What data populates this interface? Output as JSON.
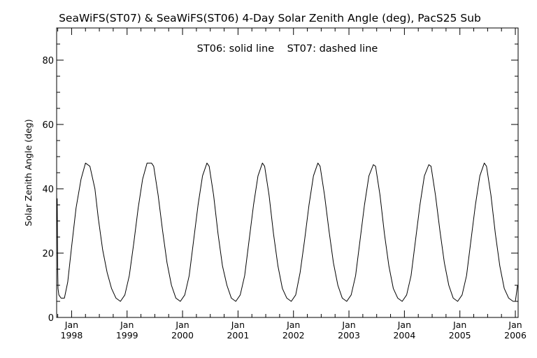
{
  "chart_data": {
    "type": "line",
    "title": "SeaWiFS(ST07) & SeaWiFS(ST06) 4-Day Solar Zenith Angle (deg), PacS25 Sub",
    "annotation": "ST06: solid line    ST07: dashed line",
    "xlabel": "",
    "ylabel": "Solar Zenith Angle (deg)",
    "xlim": [
      1997.73,
      2006.05
    ],
    "ylim": [
      0,
      90
    ],
    "yticks": [
      0,
      20,
      40,
      60,
      80
    ],
    "xticks": [
      {
        "value": 1998.0,
        "month": "Jan",
        "year": "1998"
      },
      {
        "value": 1999.0,
        "month": "Jan",
        "year": "1999"
      },
      {
        "value": 2000.0,
        "month": "Jan",
        "year": "2000"
      },
      {
        "value": 2001.0,
        "month": "Jan",
        "year": "2001"
      },
      {
        "value": 2002.0,
        "month": "Jan",
        "year": "2002"
      },
      {
        "value": 2003.0,
        "month": "Jan",
        "year": "2003"
      },
      {
        "value": 2004.0,
        "month": "Jan",
        "year": "2004"
      },
      {
        "value": 2005.0,
        "month": "Jan",
        "year": "2005"
      },
      {
        "value": 2006.0,
        "month": "Jan",
        "year": "2006"
      }
    ],
    "grid": false,
    "series": [
      {
        "name": "ST06",
        "style": "solid",
        "color": "#000000",
        "x": [
          1997.74,
          1997.745,
          1997.75,
          1997.755,
          1997.77,
          1997.81,
          1997.87,
          1997.93,
          1998.0,
          1998.08,
          1998.17,
          1998.25,
          1998.33,
          1998.42,
          1998.48,
          1998.56,
          1998.64,
          1998.72,
          1998.8,
          1998.88,
          1998.96,
          1999.04,
          1999.12,
          1999.2,
          1999.28,
          1999.36,
          1999.44,
          1999.48,
          1999.56,
          1999.64,
          1999.72,
          1999.8,
          1999.88,
          1999.96,
          2000.04,
          2000.12,
          2000.2,
          2000.28,
          2000.36,
          2000.44,
          2000.48,
          2000.56,
          2000.64,
          2000.72,
          2000.8,
          2000.88,
          2000.96,
          2001.04,
          2001.12,
          2001.2,
          2001.28,
          2001.36,
          2001.44,
          2001.48,
          2001.56,
          2001.64,
          2001.72,
          2001.8,
          2001.88,
          2001.96,
          2002.04,
          2002.12,
          2002.2,
          2002.28,
          2002.36,
          2002.44,
          2002.48,
          2002.56,
          2002.64,
          2002.72,
          2002.8,
          2002.88,
          2002.96,
          2003.04,
          2003.12,
          2003.2,
          2003.28,
          2003.36,
          2003.44,
          2003.48,
          2003.56,
          2003.64,
          2003.72,
          2003.8,
          2003.88,
          2003.96,
          2004.04,
          2004.12,
          2004.2,
          2004.28,
          2004.36,
          2004.44,
          2004.48,
          2004.56,
          2004.64,
          2004.72,
          2004.8,
          2004.88,
          2004.96,
          2005.04,
          2005.12,
          2005.2,
          2005.28,
          2005.36,
          2005.44,
          2005.48,
          2005.56,
          2005.64,
          2005.72,
          2005.8,
          2005.88,
          2005.96,
          2006.0,
          2006.04
        ],
        "y": [
          37,
          25,
          14,
          9,
          7,
          6,
          6,
          11,
          22,
          34,
          43,
          48,
          47,
          40,
          31,
          21,
          14,
          9,
          6,
          5,
          7,
          13,
          23,
          34,
          43,
          48,
          48,
          47,
          38,
          27,
          17,
          10,
          6,
          5,
          7,
          13,
          24,
          35,
          44,
          48,
          47,
          38,
          26,
          16,
          10,
          6,
          5,
          7,
          13,
          24,
          35,
          44,
          48,
          47,
          38,
          26,
          16,
          9,
          6,
          5,
          7,
          14,
          24,
          35,
          44,
          48,
          47,
          38,
          27,
          17,
          10,
          6,
          5,
          7,
          13,
          24,
          35,
          44,
          47.5,
          47,
          38,
          26,
          16,
          9,
          6,
          5,
          7,
          13,
          24,
          35,
          44,
          47.5,
          47,
          38,
          27,
          17,
          10,
          6,
          5,
          7,
          13,
          24,
          35,
          44,
          48,
          47,
          38,
          26,
          16,
          9,
          6,
          5,
          5,
          10
        ]
      }
    ]
  }
}
